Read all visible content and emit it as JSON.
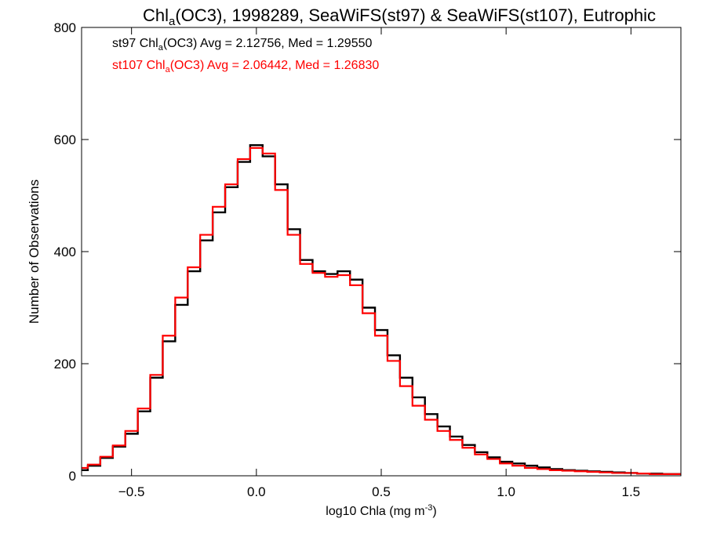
{
  "chart_data": {
    "type": "line",
    "title_parts": {
      "pre": "Chl",
      "sub": "a",
      "post": "(OC3), 1998289, SeaWiFS(st97) & SeaWiFS(st107), Eutrophic"
    },
    "xlabel_parts": {
      "pre": "log10 Chla (mg m",
      "sup": "-3",
      "post": ")"
    },
    "ylabel": "Number of Observations",
    "xlim": [
      -0.7,
      1.7
    ],
    "ylim": [
      0,
      800
    ],
    "xticks": [
      -0.5,
      0.0,
      0.5,
      1.0,
      1.5
    ],
    "xtick_labels": [
      "−0.5",
      "0.0",
      "0.5",
      "1.0",
      "1.5"
    ],
    "yticks": [
      0,
      200,
      400,
      600,
      800
    ],
    "ytick_labels": [
      "0",
      "200",
      "400",
      "600",
      "800"
    ],
    "grid": false,
    "step": "mid",
    "annotations": [
      {
        "series": 0,
        "pre": "st97 Chl",
        "sub": "a",
        "post": "(OC3) Avg = 2.12756, Med = 1.29550",
        "color": "#000000"
      },
      {
        "series": 1,
        "pre": "st107 Chl",
        "sub": "a",
        "post": "(OC3) Avg = 2.06442, Med = 1.26830",
        "color": "#ff0000"
      }
    ],
    "x": [
      -0.7,
      -0.65,
      -0.6,
      -0.55,
      -0.5,
      -0.45,
      -0.4,
      -0.35,
      -0.3,
      -0.25,
      -0.2,
      -0.15,
      -0.1,
      -0.05,
      0.0,
      0.05,
      0.1,
      0.15,
      0.2,
      0.25,
      0.3,
      0.35,
      0.4,
      0.45,
      0.5,
      0.55,
      0.6,
      0.65,
      0.7,
      0.75,
      0.8,
      0.85,
      0.9,
      0.95,
      1.0,
      1.05,
      1.1,
      1.15,
      1.2,
      1.25,
      1.3,
      1.35,
      1.4,
      1.45,
      1.5,
      1.55,
      1.6,
      1.65,
      1.7
    ],
    "series": [
      {
        "color": "#000000",
        "values": [
          10,
          18,
          32,
          52,
          75,
          115,
          175,
          240,
          305,
          365,
          420,
          470,
          515,
          560,
          590,
          570,
          520,
          440,
          385,
          365,
          360,
          365,
          350,
          300,
          260,
          215,
          175,
          140,
          110,
          88,
          70,
          55,
          42,
          33,
          25,
          22,
          18,
          15,
          12,
          10,
          9,
          8,
          7,
          6,
          5,
          4,
          4,
          3,
          3
        ]
      },
      {
        "color": "#ff0000",
        "values": [
          14,
          20,
          34,
          54,
          80,
          120,
          180,
          250,
          318,
          372,
          430,
          480,
          520,
          565,
          585,
          575,
          510,
          430,
          378,
          362,
          355,
          358,
          340,
          290,
          250,
          205,
          160,
          125,
          100,
          80,
          64,
          50,
          38,
          30,
          22,
          18,
          14,
          12,
          10,
          9,
          8,
          7,
          6,
          5,
          5,
          4,
          3,
          3,
          3
        ]
      }
    ]
  }
}
